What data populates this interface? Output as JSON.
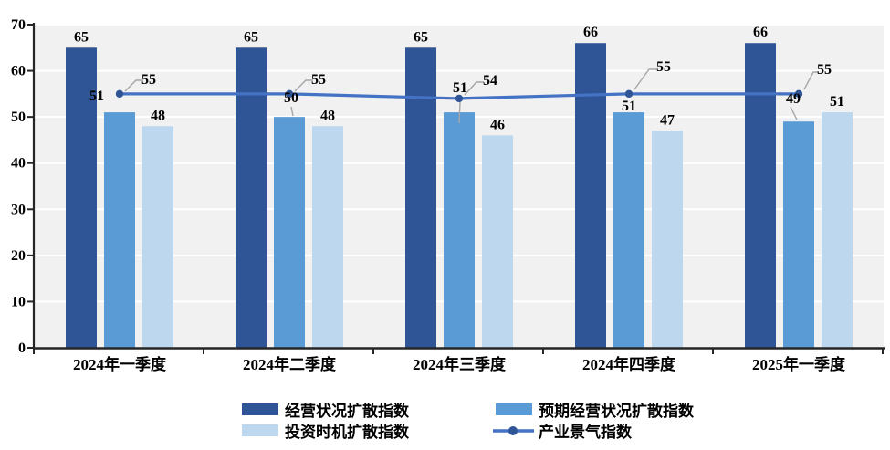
{
  "chart_data": {
    "type": "bar",
    "title": "",
    "xlabel": "",
    "ylabel": "",
    "categories": [
      "2024年一季度",
      "2024年二季度",
      "2024年三季度",
      "2024年四季度",
      "2025年一季度"
    ],
    "series": [
      {
        "name": "经营状况扩散指数",
        "type": "bar",
        "color": "#2F5597",
        "values": [
          65,
          65,
          65,
          66,
          66
        ]
      },
      {
        "name": "预期经营状况扩散指数",
        "type": "bar",
        "color": "#5B9BD5",
        "values": [
          51,
          50,
          51,
          51,
          49
        ]
      },
      {
        "name": "投资时机扩散指数",
        "type": "bar",
        "color": "#BDD7EE",
        "values": [
          48,
          48,
          46,
          47,
          51
        ]
      },
      {
        "name": "产业景气指数",
        "type": "line",
        "color": "#4472C4",
        "marker_color": "#2F5597",
        "values": [
          55,
          55,
          54,
          55,
          55
        ]
      }
    ],
    "ylim": [
      0,
      70
    ],
    "ytick_interval": 10,
    "yticks": [
      0,
      10,
      20,
      30,
      40,
      50,
      60,
      70
    ],
    "grid": true,
    "data_labels": true,
    "legend_position": "bottom"
  },
  "colors": {
    "page_background": "#FFFFFF",
    "plot_background": "#F1F1F1",
    "gridline": "#FFFFFF",
    "axis": "#262626",
    "label_text": "#000000",
    "leader_line": "#A6A6A6"
  }
}
